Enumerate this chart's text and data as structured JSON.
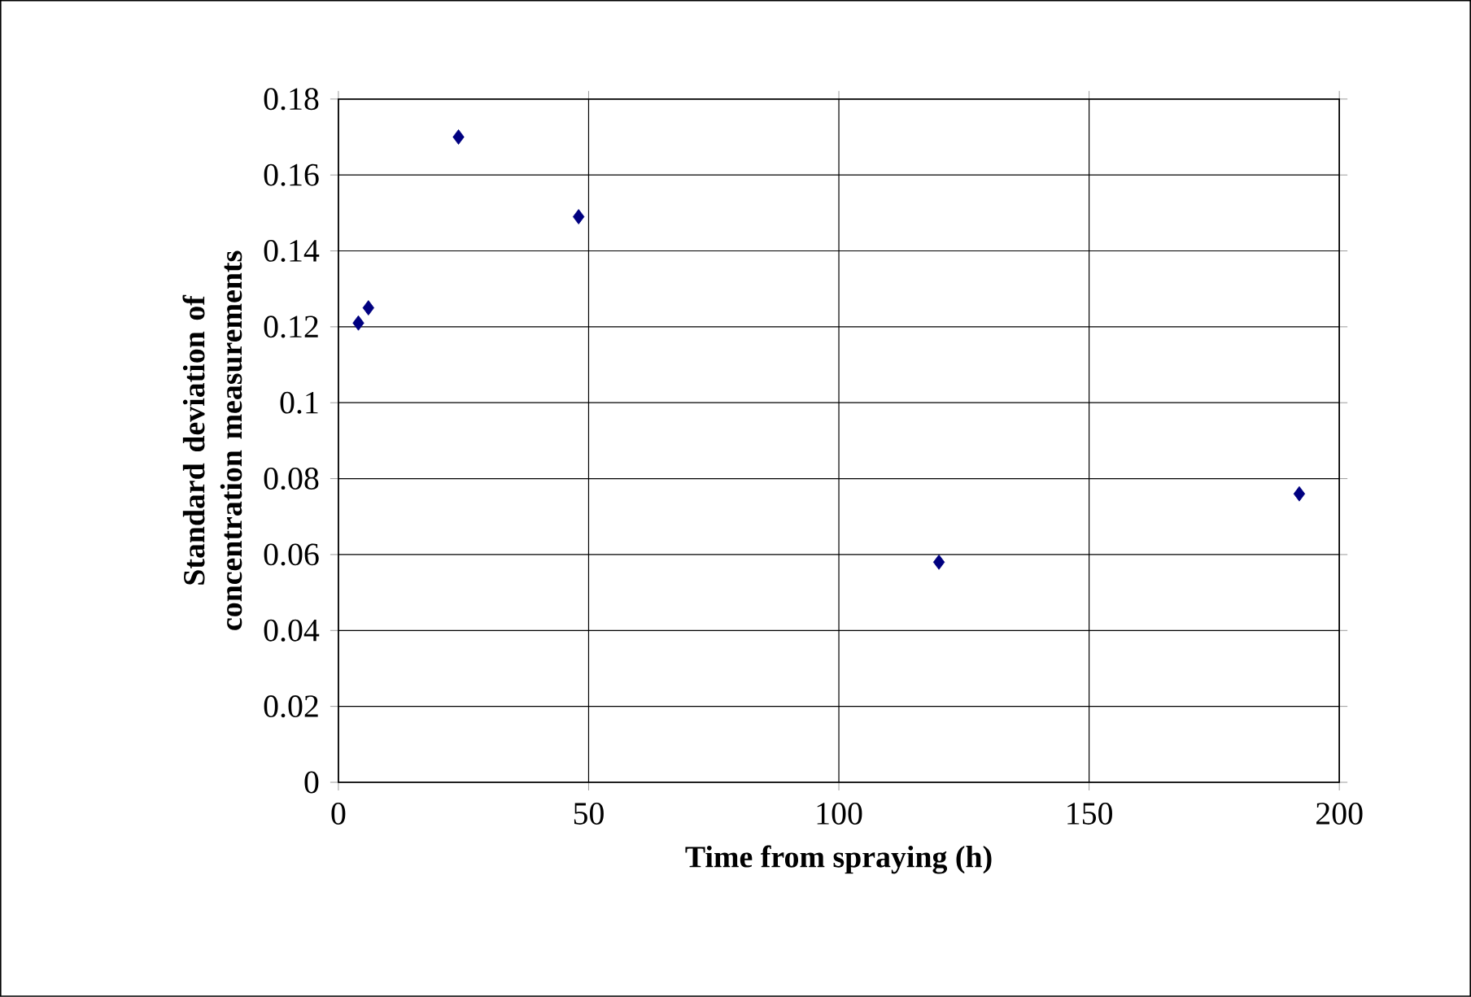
{
  "chart_data": {
    "type": "scatter",
    "xlabel": "Time from spraying (h)",
    "ylabel": "Standard deviation of concentration measurements",
    "x": [
      4,
      6,
      24,
      48,
      120,
      192
    ],
    "series": [
      {
        "color": "#000080",
        "values": [
          0.121,
          0.125,
          0.17,
          0.149,
          0.058,
          0.076
        ]
      }
    ],
    "xlim": [
      0,
      200
    ],
    "xticks": [
      0,
      50,
      100,
      150,
      200
    ],
    "ylim": [
      0,
      0.18
    ],
    "yticks": [
      0,
      {
        "value": 0.02,
        "label": "0.02"
      },
      {
        "value": 0.04,
        "label": "0.04"
      },
      {
        "value": 0.06,
        "label": "0.06"
      },
      {
        "value": 0.08,
        "label": "0.08"
      },
      {
        "value": 0.1,
        "label": "0.1"
      },
      {
        "value": 0.12,
        "label": "0.12"
      },
      {
        "value": 0.14,
        "label": "0.14"
      },
      {
        "value": 0.16,
        "label": "0.16"
      },
      {
        "value": 0.18,
        "label": "0.18"
      }
    ],
    "grid": true,
    "marker": "diamond"
  }
}
